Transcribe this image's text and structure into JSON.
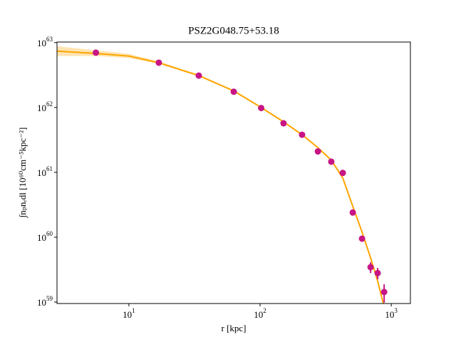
{
  "chart_data": {
    "type": "scatter",
    "title": "PSZ2G048.75+53.18",
    "x_label": "r [kpc]",
    "y_label": "∫nₚnₑdl [10⁶⁰cm⁻⁵kpc⁻²]",
    "log_x": true,
    "log_y": true,
    "xlim": [
      2.83,
      1400
    ],
    "ylim": [
      9.5e+58,
      1.02e+63
    ],
    "xticks": [
      {
        "value": 10,
        "label": "10^1"
      },
      {
        "value": 100,
        "label": "10^2"
      },
      {
        "value": 1000,
        "label": "10^3"
      }
    ],
    "yticks": [
      {
        "value": 1e+59,
        "label": "10^59"
      },
      {
        "value": 1e+60,
        "label": "10^60"
      },
      {
        "value": 1e+61,
        "label": "10^61"
      },
      {
        "value": 1e+62,
        "label": "10^62"
      },
      {
        "value": 1e+63,
        "label": "10^63"
      }
    ],
    "series": [
      {
        "kind": "band",
        "color": "#ffd27f",
        "x": [
          2.83,
          5.6,
          10,
          16.9,
          34.1,
          63,
          102,
          151,
          209,
          276,
          349,
          427,
          509,
          599,
          696,
          788,
          870
        ],
        "lower": [
          6.2e+62,
          6.2e+62,
          5.8e+62,
          4.7e+62,
          3e+62,
          1.75e+62,
          9.7e+61,
          5.8e+61,
          3.7e+61,
          2.33e+61,
          1.49e+61,
          7.9e+60,
          2.9e+60,
          1.15e+60,
          4.6e+59,
          2e+59,
          9e+58
        ],
        "upper": [
          8.8e+62,
          7.6e+62,
          6.7e+62,
          5.1e+62,
          3.2e+62,
          1.85e+62,
          1.03e+62,
          6.2e+61,
          3.9e+61,
          2.47e+61,
          1.59e+61,
          8.5e+60,
          3.1e+60,
          1.25e+60,
          5e+59,
          2.2e+59,
          1e+59
        ]
      },
      {
        "kind": "line",
        "color": "#ffa500",
        "x": [
          2.83,
          5.6,
          10,
          16.9,
          34.1,
          63,
          102,
          151,
          209,
          276,
          349,
          427,
          509,
          599,
          696,
          788,
          870
        ],
        "values": [
          7.4e+62,
          6.8e+62,
          6.2e+62,
          4.9e+62,
          3.1e+62,
          1.8e+62,
          1e+62,
          6e+61,
          3.8e+61,
          2.4e+61,
          1.54e+61,
          8.2e+60,
          3e+60,
          1.2e+60,
          4.8e+59,
          2.1e+59,
          9.5e+58
        ]
      },
      {
        "kind": "points",
        "color": "#c71585",
        "x": [
          5.6,
          16.9,
          34.1,
          63,
          102,
          151,
          209,
          276,
          349,
          427,
          509,
          599,
          696,
          788,
          883
        ],
        "values": [
          7e+62,
          4.9e+62,
          3.1e+62,
          1.75e+62,
          9.8e+61,
          5.7e+61,
          3.8e+61,
          2.1e+61,
          1.46e+61,
          9.8e+60,
          2.4e+60,
          9.5e+59,
          3.45e+59,
          2.8e+59,
          1.43e+59
        ],
        "yerr": [
          0,
          0,
          0,
          0,
          0,
          0,
          0,
          0,
          0,
          0,
          0,
          0,
          6.5e+58,
          5.5e+58,
          4.5e+58
        ]
      }
    ]
  }
}
